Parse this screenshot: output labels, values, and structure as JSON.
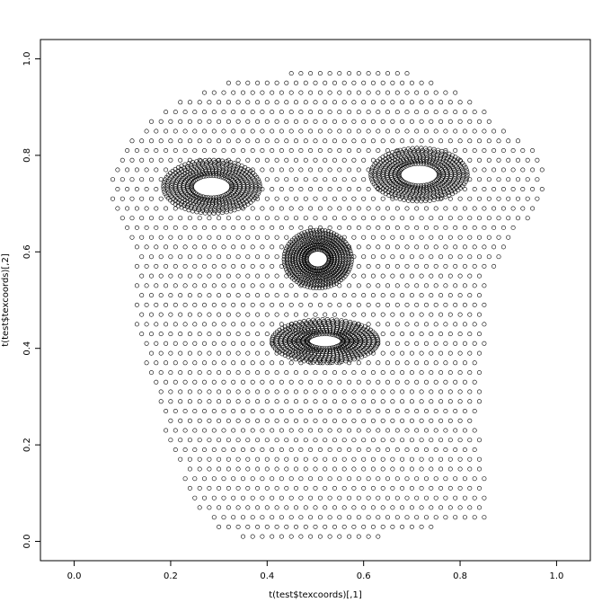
{
  "chart_data": {
    "type": "scatter",
    "title": "",
    "xlabel": "t(test$texcoords)[,1]",
    "ylabel": "t(test$texcoords)[,2]",
    "xlim": [
      -0.07,
      1.07
    ],
    "ylim": [
      -0.04,
      1.04
    ],
    "xticks": [
      0.0,
      0.2,
      0.4,
      0.6,
      0.8,
      1.0
    ],
    "yticks": [
      0.0,
      0.2,
      0.4,
      0.6,
      0.8,
      1.0
    ],
    "xtick_labels": [
      "0.0",
      "0.2",
      "0.4",
      "0.6",
      "0.8",
      "1.0"
    ],
    "ytick_labels": [
      "0.0",
      "0.2",
      "0.4",
      "0.6",
      "0.8",
      "1.0"
    ],
    "marker": "open-circle",
    "grid": false,
    "legend": "none",
    "point_color": "#000000",
    "series": [
      {
        "description": "face mesh texture coordinates (dense UV grid)",
        "region_outline": [
          [
            0.07,
            0.74
          ],
          [
            0.1,
            0.82
          ],
          [
            0.18,
            0.9
          ],
          [
            0.3,
            0.95
          ],
          [
            0.5,
            0.98
          ],
          [
            0.7,
            0.97
          ],
          [
            0.82,
            0.92
          ],
          [
            0.9,
            0.85
          ],
          [
            0.98,
            0.79
          ],
          [
            0.97,
            0.7
          ],
          [
            0.9,
            0.62
          ],
          [
            0.86,
            0.55
          ],
          [
            0.85,
            0.4
          ],
          [
            0.84,
            0.25
          ],
          [
            0.86,
            0.05
          ],
          [
            0.7,
            0.02
          ],
          [
            0.55,
            -0.01
          ],
          [
            0.4,
            0.0
          ],
          [
            0.3,
            0.02
          ],
          [
            0.25,
            0.08
          ],
          [
            0.18,
            0.25
          ],
          [
            0.13,
            0.45
          ],
          [
            0.12,
            0.6
          ],
          [
            0.08,
            0.68
          ]
        ],
        "eyes": [
          {
            "cx": 0.285,
            "cy": 0.735,
            "rx": 0.1,
            "ry": 0.055
          },
          {
            "cx": 0.715,
            "cy": 0.76,
            "rx": 0.1,
            "ry": 0.055
          }
        ],
        "nose": {
          "cx": 0.505,
          "cy": 0.585,
          "rx": 0.07,
          "ry": 0.06
        },
        "mouth": {
          "cx": 0.52,
          "cy": 0.415,
          "rx": 0.11,
          "ry": 0.045
        }
      }
    ]
  }
}
